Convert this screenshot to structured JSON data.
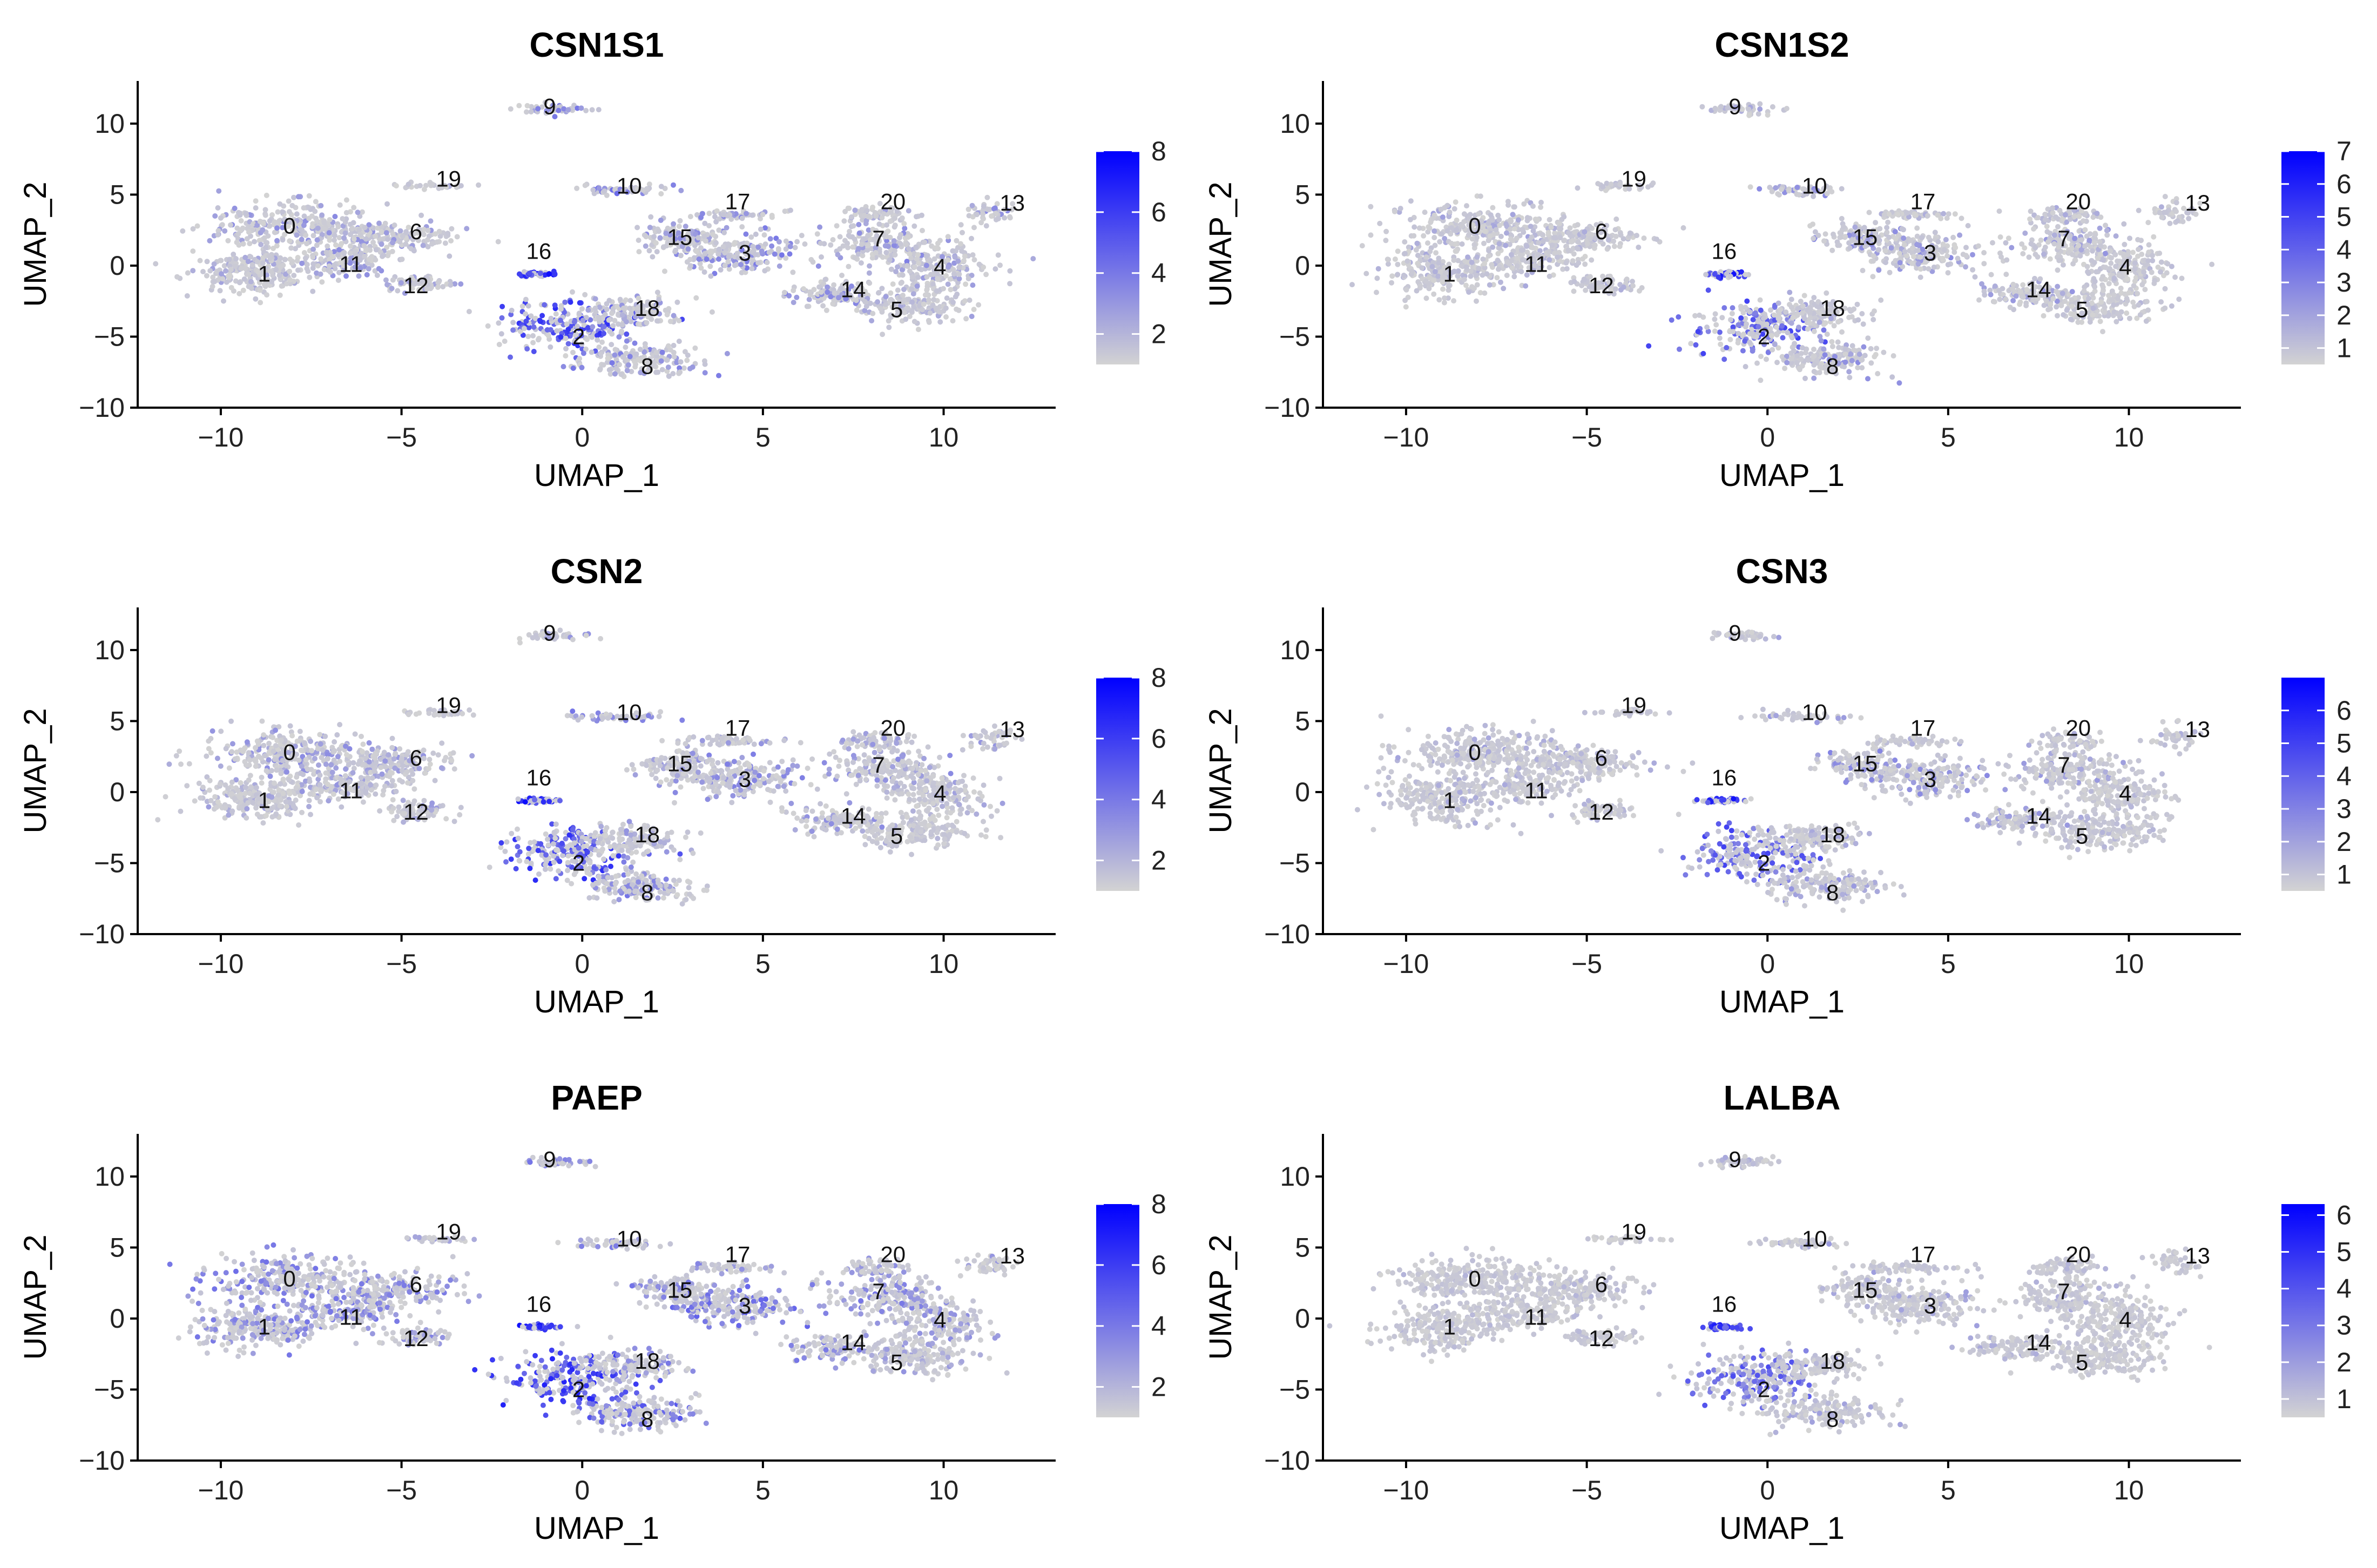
{
  "chart_data": [
    {
      "type": "scatter",
      "title": "CSN1S1",
      "xlabel": "UMAP_1",
      "ylabel": "UMAP_2",
      "xlim": [
        -12.3,
        13.1
      ],
      "ylim": [
        -10,
        13
      ],
      "xticks": [
        -10,
        -5,
        0,
        5,
        10
      ],
      "yticks": [
        -10,
        -5,
        0,
        5,
        10
      ],
      "legend": {
        "position": "right",
        "min": 1,
        "max": 8,
        "ticks": [
          2,
          4,
          6,
          8
        ],
        "low_color": "#d3d3d3",
        "high_color": "#0000ff"
      },
      "intensity": [
        0.35,
        0.25,
        0.8,
        0.45,
        0.3,
        0.25,
        0.3,
        0.4,
        0.45,
        0.45,
        0.5,
        0.35,
        0.3,
        0.35,
        0.4,
        0.35,
        0.95,
        0.4,
        0.3,
        0.2,
        0.3
      ],
      "grid": false
    },
    {
      "type": "scatter",
      "title": "CSN1S2",
      "xlabel": "UMAP_1",
      "ylabel": "UMAP_2",
      "xlim": [
        -12.3,
        13.1
      ],
      "ylim": [
        -10,
        13
      ],
      "xticks": [
        -10,
        -5,
        0,
        5,
        10
      ],
      "yticks": [
        -10,
        -5,
        0,
        5,
        10
      ],
      "legend": {
        "position": "right",
        "min": 0.5,
        "max": 7,
        "ticks": [
          1,
          2,
          3,
          4,
          5,
          6,
          7
        ],
        "low_color": "#d3d3d3",
        "high_color": "#0000ff"
      },
      "intensity": [
        0.25,
        0.2,
        0.7,
        0.35,
        0.15,
        0.15,
        0.2,
        0.3,
        0.35,
        0.25,
        0.35,
        0.2,
        0.2,
        0.2,
        0.3,
        0.35,
        0.95,
        0.2,
        0.25,
        0.15,
        0.2
      ],
      "grid": false
    },
    {
      "type": "scatter",
      "title": "CSN2",
      "xlabel": "UMAP_1",
      "ylabel": "UMAP_2",
      "xlim": [
        -12.3,
        13.1
      ],
      "ylim": [
        -10,
        13
      ],
      "xticks": [
        -10,
        -5,
        0,
        5,
        10
      ],
      "yticks": [
        -10,
        -5,
        0,
        5,
        10
      ],
      "legend": {
        "position": "right",
        "min": 1,
        "max": 8,
        "ticks": [
          2,
          4,
          6,
          8
        ],
        "low_color": "#d3d3d3",
        "high_color": "#0000ff"
      },
      "intensity": [
        0.35,
        0.25,
        0.8,
        0.4,
        0.25,
        0.2,
        0.3,
        0.35,
        0.4,
        0.35,
        0.45,
        0.3,
        0.3,
        0.3,
        0.35,
        0.35,
        0.95,
        0.35,
        0.3,
        0.2,
        0.3
      ],
      "grid": false
    },
    {
      "type": "scatter",
      "title": "CSN3",
      "xlabel": "UMAP_1",
      "ylabel": "UMAP_2",
      "xlim": [
        -12.3,
        13.1
      ],
      "ylim": [
        -10,
        13
      ],
      "xticks": [
        -10,
        -5,
        0,
        5,
        10
      ],
      "yticks": [
        -10,
        -5,
        0,
        5,
        10
      ],
      "legend": {
        "position": "right",
        "min": 0.5,
        "max": 7,
        "ticks": [
          1,
          2,
          3,
          4,
          5,
          6
        ],
        "low_color": "#d3d3d3",
        "high_color": "#0000ff"
      },
      "intensity": [
        0.25,
        0.2,
        0.7,
        0.35,
        0.15,
        0.15,
        0.2,
        0.3,
        0.3,
        0.25,
        0.35,
        0.2,
        0.2,
        0.2,
        0.3,
        0.4,
        0.95,
        0.2,
        0.25,
        0.15,
        0.2
      ],
      "grid": false
    },
    {
      "type": "scatter",
      "title": "PAEP",
      "xlabel": "UMAP_1",
      "ylabel": "UMAP_2",
      "xlim": [
        -12.3,
        13.1
      ],
      "ylim": [
        -10,
        13
      ],
      "xticks": [
        -10,
        -5,
        0,
        5,
        10
      ],
      "yticks": [
        -10,
        -5,
        0,
        5,
        10
      ],
      "legend": {
        "position": "right",
        "min": 1,
        "max": 8,
        "ticks": [
          2,
          4,
          6,
          8
        ],
        "low_color": "#d3d3d3",
        "high_color": "#0000ff"
      },
      "intensity": [
        0.5,
        0.45,
        0.85,
        0.55,
        0.35,
        0.3,
        0.45,
        0.45,
        0.6,
        0.45,
        0.5,
        0.45,
        0.4,
        0.35,
        0.45,
        0.45,
        0.95,
        0.4,
        0.45,
        0.25,
        0.35
      ],
      "grid": false
    },
    {
      "type": "scatter",
      "title": "LALBA",
      "xlabel": "UMAP_1",
      "ylabel": "UMAP_2",
      "xlim": [
        -12.3,
        13.1
      ],
      "ylim": [
        -10,
        13
      ],
      "xticks": [
        -10,
        -5,
        0,
        5,
        10
      ],
      "yticks": [
        -10,
        -5,
        0,
        5,
        10
      ],
      "legend": {
        "position": "right",
        "min": 0.5,
        "max": 6.3,
        "ticks": [
          1,
          2,
          3,
          4,
          5,
          6
        ],
        "low_color": "#d3d3d3",
        "high_color": "#0000ff"
      },
      "intensity": [
        0.15,
        0.15,
        0.65,
        0.25,
        0.1,
        0.1,
        0.15,
        0.2,
        0.25,
        0.2,
        0.3,
        0.15,
        0.15,
        0.15,
        0.2,
        0.25,
        0.9,
        0.15,
        0.2,
        0.1,
        0.15
      ],
      "grid": false
    }
  ],
  "clusters": [
    {
      "id": "0",
      "cx": -8.1,
      "cy": 2.8,
      "rx": 2.2,
      "ry": 1.6,
      "n": 260
    },
    {
      "id": "1",
      "cx": -9.0,
      "cy": -0.5,
      "rx": 1.7,
      "ry": 1.6,
      "n": 240
    },
    {
      "id": "2",
      "cx": -0.3,
      "cy": -4.3,
      "rx": 1.8,
      "ry": 1.8,
      "n": 220
    },
    {
      "id": "3",
      "cx": 4.2,
      "cy": 0.9,
      "rx": 1.7,
      "ry": 1.4,
      "n": 200
    },
    {
      "id": "4",
      "cx": 9.8,
      "cy": -0.2,
      "rx": 1.4,
      "ry": 1.7,
      "n": 180
    },
    {
      "id": "5",
      "cx": 9.2,
      "cy": -2.8,
      "rx": 1.6,
      "ry": 1.2,
      "n": 170
    },
    {
      "id": "6",
      "cx": -5.3,
      "cy": 2.0,
      "rx": 1.8,
      "ry": 1.1,
      "n": 180
    },
    {
      "id": "7",
      "cx": 8.3,
      "cy": 1.6,
      "rx": 1.6,
      "ry": 1.4,
      "n": 170
    },
    {
      "id": "8",
      "cx": 1.6,
      "cy": -6.6,
      "rx": 1.6,
      "ry": 1.1,
      "n": 170
    },
    {
      "id": "9",
      "cx": -0.7,
      "cy": 11.0,
      "rx": 0.9,
      "ry": 0.35,
      "n": 45
    },
    {
      "id": "10",
      "cx": 0.9,
      "cy": 5.3,
      "rx": 1.3,
      "ry": 0.35,
      "n": 50
    },
    {
      "id": "11",
      "cx": -6.6,
      "cy": 0.4,
      "rx": 1.4,
      "ry": 1.0,
      "n": 140
    },
    {
      "id": "12",
      "cx": -4.6,
      "cy": -1.3,
      "rx": 1.0,
      "ry": 0.6,
      "n": 70
    },
    {
      "id": "13",
      "cx": 11.3,
      "cy": 3.8,
      "rx": 0.7,
      "ry": 0.9,
      "n": 45
    },
    {
      "id": "14",
      "cx": 7.0,
      "cy": -2.0,
      "rx": 1.3,
      "ry": 0.9,
      "n": 110
    },
    {
      "id": "15",
      "cx": 2.6,
      "cy": 2.0,
      "rx": 1.1,
      "ry": 1.0,
      "n": 110
    },
    {
      "id": "16",
      "cx": -1.2,
      "cy": -0.6,
      "rx": 0.6,
      "ry": 0.18,
      "n": 45
    },
    {
      "id": "17",
      "cx": 4.0,
      "cy": 3.6,
      "rx": 1.4,
      "ry": 0.3,
      "n": 55
    },
    {
      "id": "18",
      "cx": 1.4,
      "cy": -3.3,
      "rx": 1.4,
      "ry": 1.0,
      "n": 120
    },
    {
      "id": "19",
      "cx": -4.0,
      "cy": 5.6,
      "rx": 0.9,
      "ry": 0.2,
      "n": 30
    },
    {
      "id": "20",
      "cx": 8.2,
      "cy": 3.6,
      "rx": 1.0,
      "ry": 0.6,
      "n": 60
    }
  ],
  "cluster_labels": [
    {
      "id": "0",
      "x": -8.1,
      "y": 2.8
    },
    {
      "id": "1",
      "x": -8.8,
      "y": -0.6
    },
    {
      "id": "2",
      "x": -0.1,
      "y": -5.0
    },
    {
      "id": "3",
      "x": 4.5,
      "y": 0.9
    },
    {
      "id": "4",
      "x": 9.9,
      "y": -0.1
    },
    {
      "id": "5",
      "x": 8.7,
      "y": -3.1
    },
    {
      "id": "6",
      "x": -4.6,
      "y": 2.4
    },
    {
      "id": "7",
      "x": 8.2,
      "y": 1.9
    },
    {
      "id": "8",
      "x": 1.8,
      "y": -7.1
    },
    {
      "id": "9",
      "x": -0.9,
      "y": 11.2
    },
    {
      "id": "10",
      "x": 1.3,
      "y": 5.6
    },
    {
      "id": "11",
      "x": -6.4,
      "y": 0.1
    },
    {
      "id": "12",
      "x": -4.6,
      "y": -1.4
    },
    {
      "id": "13",
      "x": 11.9,
      "y": 4.4
    },
    {
      "id": "14",
      "x": 7.5,
      "y": -1.7
    },
    {
      "id": "15",
      "x": 2.7,
      "y": 2.0
    },
    {
      "id": "16",
      "x": -1.2,
      "y": 1.0
    },
    {
      "id": "17",
      "x": 4.3,
      "y": 4.5
    },
    {
      "id": "18",
      "x": 1.8,
      "y": -3.0
    },
    {
      "id": "19",
      "x": -3.7,
      "y": 6.1
    },
    {
      "id": "20",
      "x": 8.6,
      "y": 4.5
    }
  ]
}
